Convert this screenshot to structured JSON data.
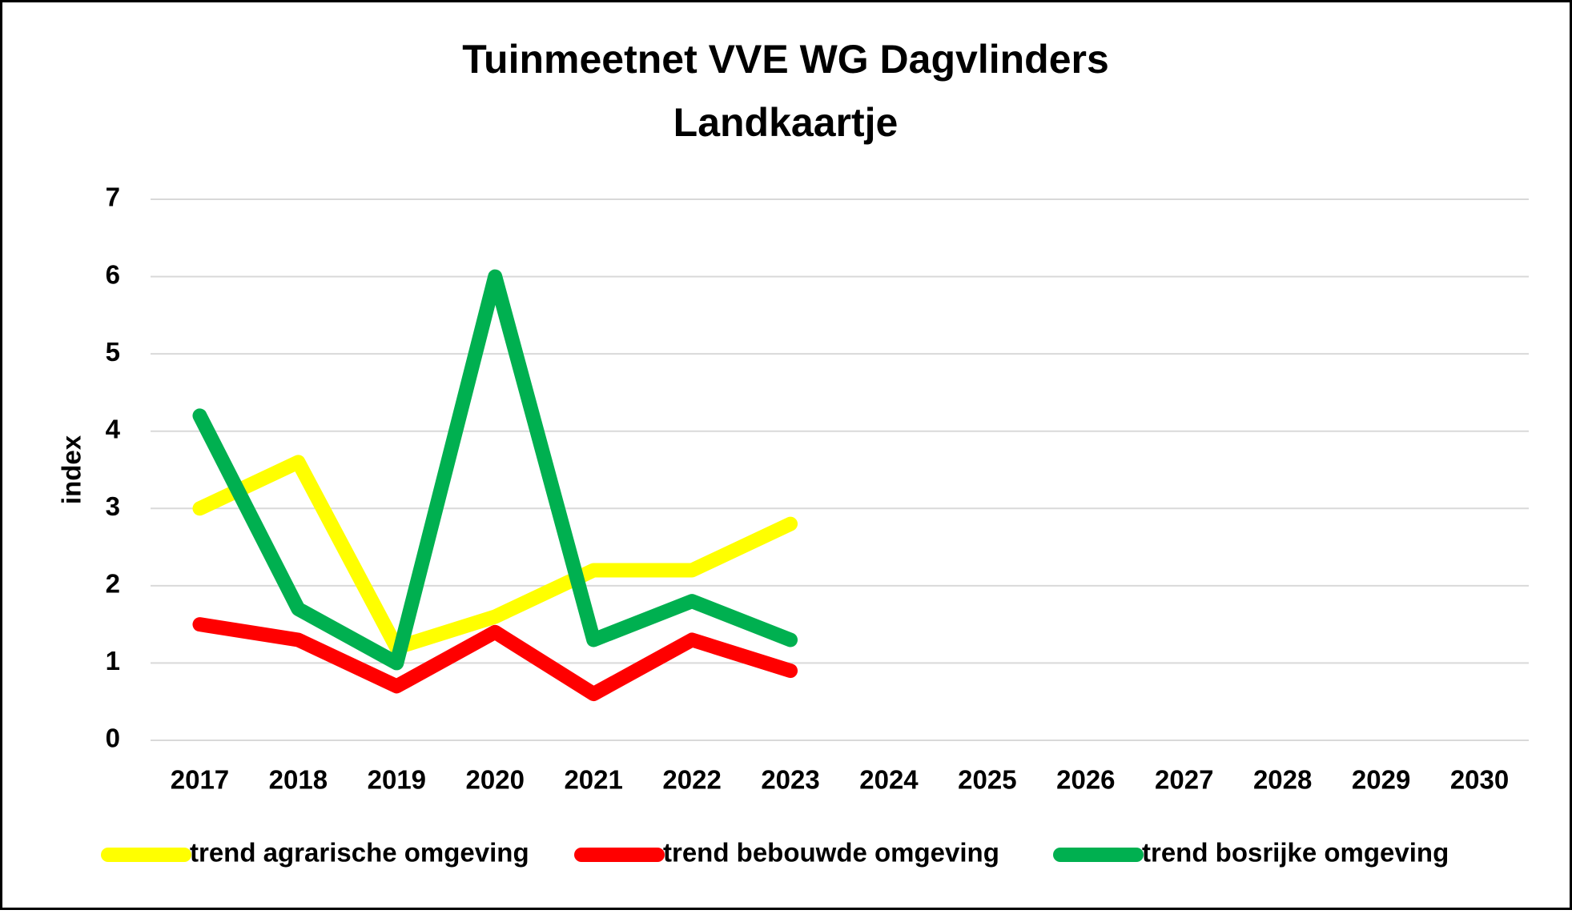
{
  "chart_data": {
    "type": "line",
    "title": "Tuinmeetnet VVE WG Dagvlinders",
    "subtitle": "Landkaartje",
    "y_label": "index",
    "categories": [
      "2017",
      "2018",
      "2019",
      "2020",
      "2021",
      "2022",
      "2023",
      "2024",
      "2025",
      "2026",
      "2027",
      "2028",
      "2029",
      "2030"
    ],
    "series": [
      {
        "name": "trend agrarische omgeving",
        "color": "#ffff00",
        "values": [
          3.0,
          3.6,
          1.2,
          1.6,
          2.2,
          2.2,
          2.8,
          null,
          null,
          null,
          null,
          null,
          null,
          null
        ]
      },
      {
        "name": "trend bebouwde omgeving",
        "color": "#ff0000",
        "values": [
          1.5,
          1.3,
          0.7,
          1.4,
          0.6,
          1.3,
          0.9,
          null,
          null,
          null,
          null,
          null,
          null,
          null
        ]
      },
      {
        "name": "trend bosrijke omgeving",
        "color": "#00b050",
        "values": [
          4.2,
          1.7,
          1.0,
          6.0,
          1.3,
          1.8,
          1.3,
          null,
          null,
          null,
          null,
          null,
          null,
          null
        ]
      }
    ],
    "ylim": [
      0,
      7
    ],
    "yticks": [
      0,
      1,
      2,
      3,
      4,
      5,
      6,
      7
    ],
    "grid": true,
    "legend": "bottom"
  }
}
